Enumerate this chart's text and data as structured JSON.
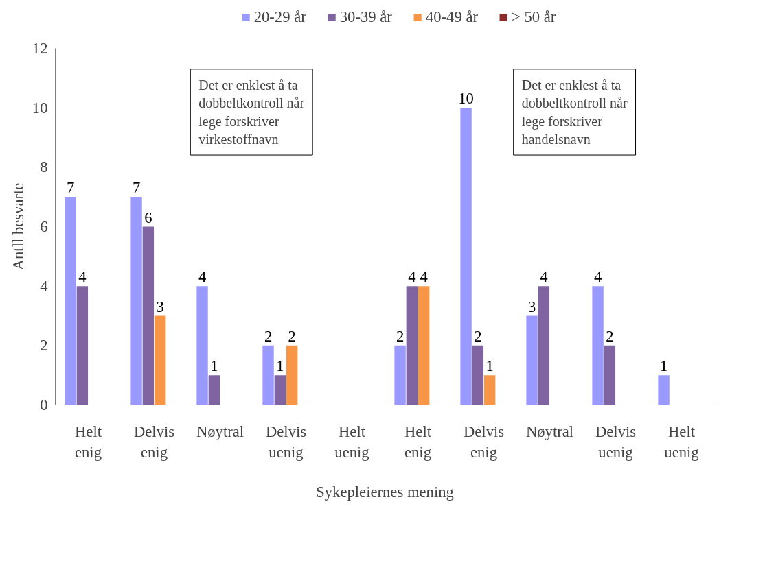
{
  "chart_data": {
    "type": "bar",
    "categories": [
      "Helt enig",
      "Delvis enig",
      "Nøytral",
      "Delvis uenig",
      "Helt uenig",
      "Helt enig",
      "Delvis enig",
      "Nøytral",
      "Delvis uenig",
      "Helt uenig"
    ],
    "series": [
      {
        "name": "20-29 år",
        "color": "#9999ff",
        "values": [
          7,
          7,
          4,
          2,
          null,
          2,
          10,
          3,
          4,
          1
        ]
      },
      {
        "name": "30-39 år",
        "color": "#8064a2",
        "values": [
          4,
          6,
          1,
          1,
          null,
          4,
          2,
          4,
          2,
          null
        ]
      },
      {
        "name": "40-49 år",
        "color": "#f79646",
        "values": [
          null,
          3,
          null,
          2,
          null,
          4,
          1,
          null,
          null,
          null
        ]
      },
      {
        "name": "> 50 år",
        "color": "#8b2b2b",
        "values": [
          null,
          null,
          null,
          null,
          null,
          null,
          null,
          null,
          null,
          null
        ]
      }
    ],
    "xlabel": "Sykepleiernes mening",
    "ylabel": "Antll besvarte",
    "annotations": [
      "Det er enklest å ta dobbeltkontroll når lege forskriver virkestoffnavn",
      "Det er enklest å ta dobbeltkontroll når lege forskriver handelsnavn"
    ],
    "ylim": [
      0,
      12
    ],
    "yticks": [
      0,
      2,
      4,
      6,
      8,
      10,
      12
    ],
    "data_labels": true,
    "grid": false,
    "legend": "top"
  }
}
